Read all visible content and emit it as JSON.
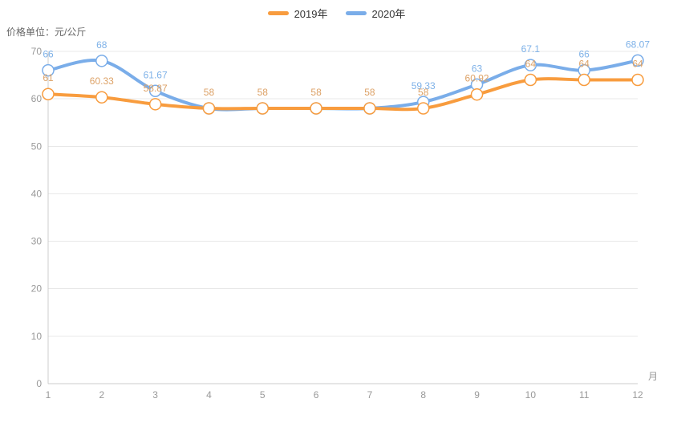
{
  "chart_data": {
    "type": "line",
    "smooth": true,
    "grid": true,
    "legend_position": "top-center",
    "title": "",
    "ylabel": "价格单位：元/公斤",
    "xlabel": "月",
    "ylim": [
      0,
      70
    ],
    "y_tick_step": 10,
    "y_ticks": [
      "0",
      "10",
      "20",
      "30",
      "40",
      "50",
      "60",
      "70"
    ],
    "categories": [
      "1",
      "2",
      "3",
      "4",
      "5",
      "6",
      "7",
      "8",
      "9",
      "10",
      "11",
      "12"
    ],
    "series": [
      {
        "name": "2019年",
        "color": "#f89c3e",
        "label_color": "#dda267",
        "values": [
          61,
          60.33,
          58.87,
          58,
          58,
          58,
          58,
          58,
          60.92,
          64,
          64,
          64
        ],
        "labels": [
          "61",
          "60.33",
          "58.87",
          "58",
          "58",
          "58",
          "58",
          "58",
          "60.92",
          "64",
          "64",
          "64"
        ]
      },
      {
        "name": "2020年",
        "color": "#7aade9",
        "label_color": "#7fb2e8",
        "values": [
          66,
          68,
          61.67,
          58,
          58,
          58,
          58,
          59.33,
          63,
          67.1,
          66,
          68.07
        ],
        "labels": [
          "66",
          "68",
          "61.67",
          null,
          null,
          null,
          null,
          "59.33",
          "63",
          "67.1",
          "66",
          "68.07"
        ]
      }
    ],
    "axis_colors": {
      "grid_line": "#e8e8e8",
      "axis_line": "#cccccc",
      "tick_label": "#999999",
      "axis_title": "#666666"
    }
  }
}
